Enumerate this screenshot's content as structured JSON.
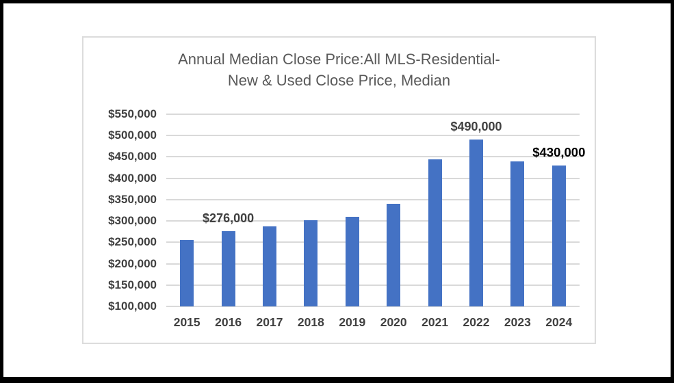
{
  "frame": {
    "outer_background": "#000000",
    "paper_background": "#ffffff",
    "chart_border_color": "#dcdcdc"
  },
  "chart_data": {
    "type": "bar",
    "title_line1": "Annual Median Close Price:All MLS-Residential-",
    "title_line2": "New & Used Close Price, Median",
    "categories": [
      "2015",
      "2016",
      "2017",
      "2018",
      "2019",
      "2020",
      "2021",
      "2022",
      "2023",
      "2024"
    ],
    "values": [
      255000,
      276000,
      288000,
      302000,
      310000,
      340000,
      445000,
      490000,
      440000,
      430000
    ],
    "data_labels": [
      {
        "index": 1,
        "text": "$276,000",
        "emphasis": false
      },
      {
        "index": 7,
        "text": "$490,000",
        "emphasis": false
      },
      {
        "index": 9,
        "text": "$430,000",
        "emphasis": true
      }
    ],
    "y_ticks": [
      "$550,000",
      "$500,000",
      "$450,000",
      "$400,000",
      "$350,000",
      "$300,000",
      "$250,000",
      "$200,000",
      "$150,000",
      "$100,000"
    ],
    "ylim": [
      100000,
      550000
    ],
    "tick_step": 50000,
    "xlabel": "",
    "ylabel": "",
    "grid": true,
    "legend_position": "none",
    "bar_color": "#4472c4",
    "gridline_color": "#d9d9d9",
    "axis_text_color": "#404040",
    "title_color": "#595959"
  }
}
